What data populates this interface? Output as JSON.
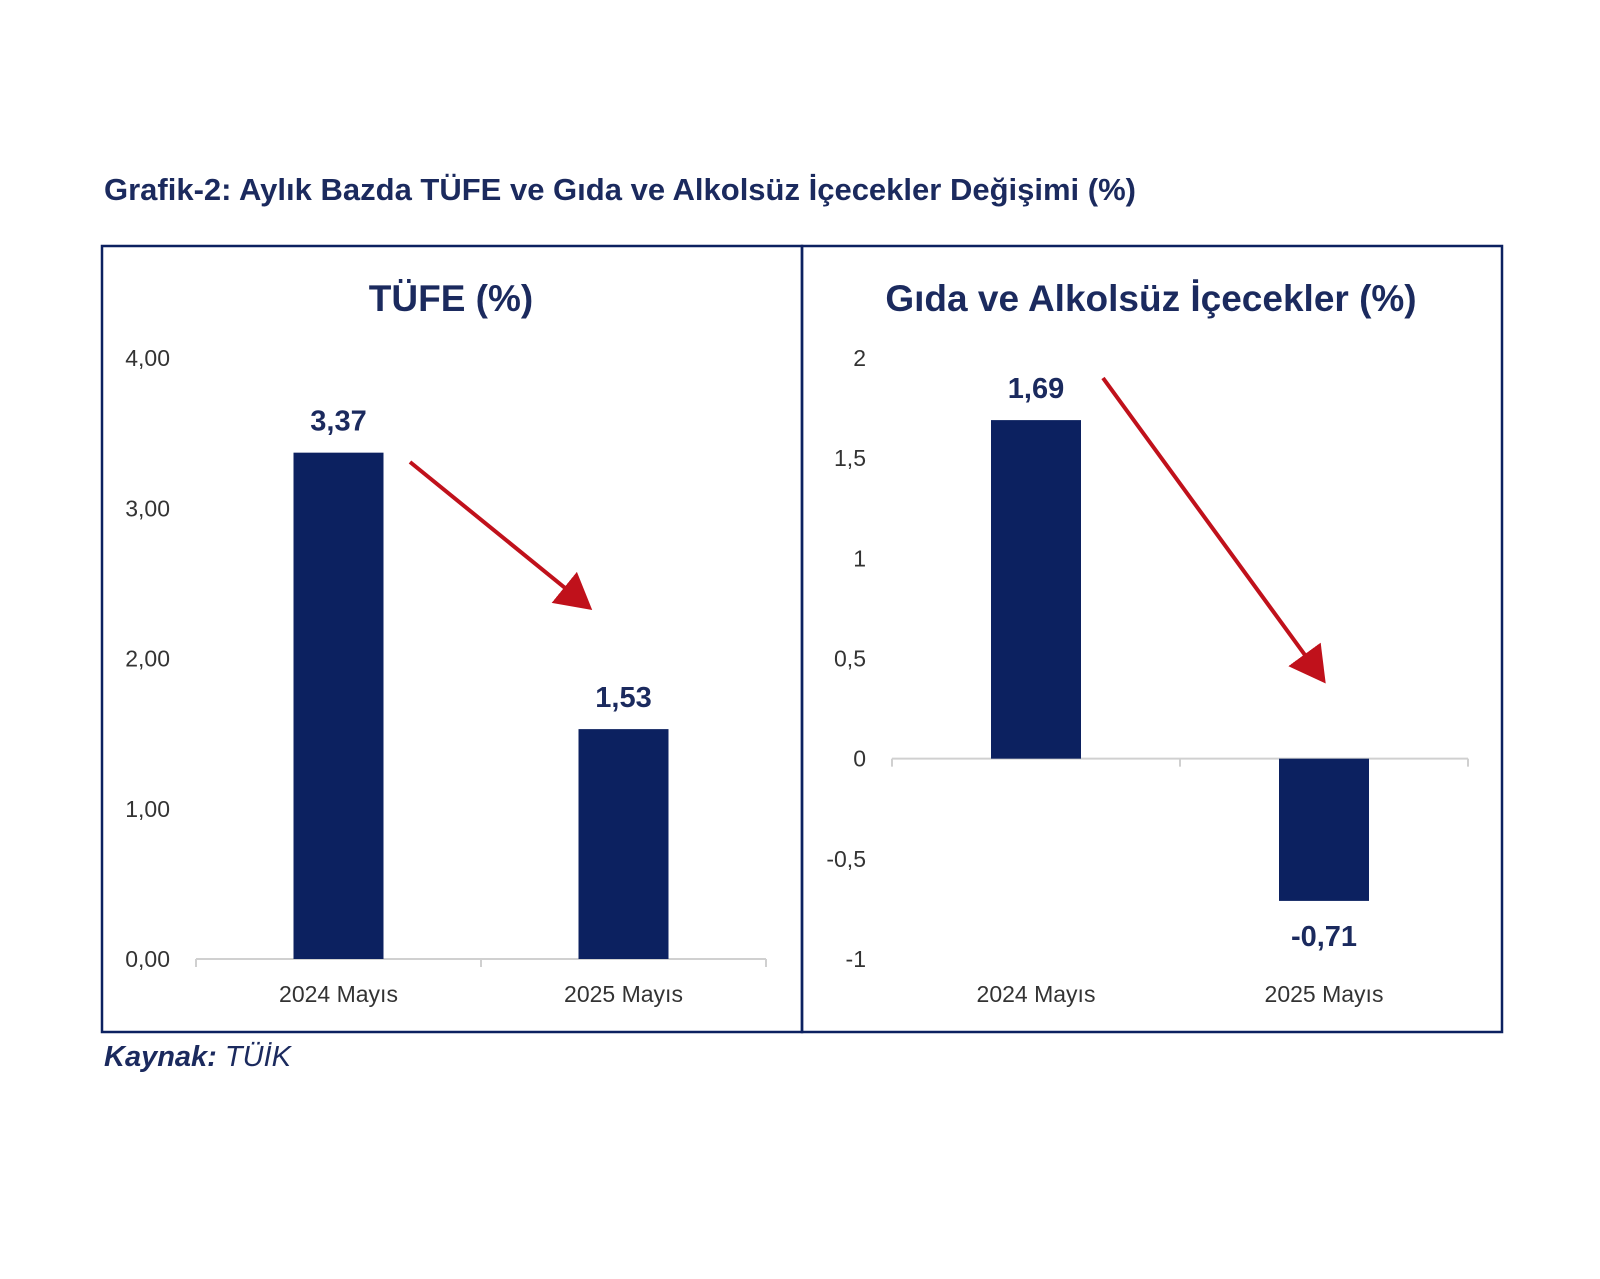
{
  "figure_title": "Grafik-2: Aylık Bazda TÜFE ve Gıda ve Alkolsüz İçecekler Değişimi (%)",
  "source": {
    "label": "Kaynak:",
    "value": "TÜİK"
  },
  "colors": {
    "bar": "#0c2160",
    "title": "#1b2a5e",
    "arrow": "#c0111b",
    "axis_text": "#333333",
    "panel_border": "#0c2160"
  },
  "chart_data": [
    {
      "type": "bar",
      "title": "TÜFE (%)",
      "categories": [
        "2024 Mayıs",
        "2025 Mayıs"
      ],
      "values": [
        3.37,
        1.53
      ],
      "value_labels": [
        "3,37",
        "1,53"
      ],
      "ylim": [
        0,
        4
      ],
      "yticks": [
        0,
        1,
        2,
        3,
        4
      ],
      "ytick_labels": [
        "0,00",
        "1,00",
        "2,00",
        "3,00",
        "4,00"
      ],
      "xlabel": "",
      "ylabel": "",
      "annotation": "red arrow indicating decrease"
    },
    {
      "type": "bar",
      "title": "Gıda ve Alkolsüz İçecekler (%)",
      "categories": [
        "2024 Mayıs",
        "2025 Mayıs"
      ],
      "values": [
        1.69,
        -0.71
      ],
      "value_labels": [
        "1,69",
        "-0,71"
      ],
      "ylim": [
        -1,
        2
      ],
      "yticks": [
        -1,
        -0.5,
        0,
        0.5,
        1,
        1.5,
        2
      ],
      "ytick_labels": [
        "-1",
        "-0,5",
        "0",
        "0,5",
        "1",
        "1,5",
        "2"
      ],
      "xlabel": "",
      "ylabel": "",
      "annotation": "red arrow indicating decrease"
    }
  ]
}
